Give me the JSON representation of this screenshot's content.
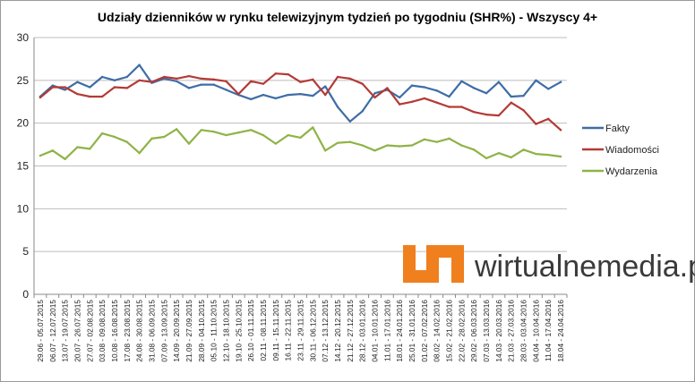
{
  "chart_data": {
    "type": "line",
    "title": "Udziały dzienników w rynku telewizyjnym tydzień po tygodniu (SHR%) - Wszyscy 4+",
    "xlabel": "",
    "ylabel": "",
    "ylim": [
      0,
      30
    ],
    "yticks": [
      "0",
      "5",
      "10",
      "15",
      "20",
      "25",
      "30"
    ],
    "grid": true,
    "legend_position": "right",
    "categories": [
      "29.06 - 05.07.2015",
      "06.07 - 12.07.2015",
      "13.07 - 19.07.2015",
      "20.07 - 26.07.2015",
      "27.07 - 02.08.2015",
      "03.08 - 09.08.2015",
      "10.08 - 16.08.2015",
      "17.08 - 23.08.2015",
      "24.08 - 30.08.2015",
      "31.08 - 06.09.2015",
      "07.09 - 13.09.2015",
      "14.09 - 20.09.2015",
      "21.09 - 27.09.2015",
      "28.09 - 04.10.2015",
      "05.10 - 11.10.2015",
      "12.10 - 18.10.2015",
      "19.10 - 25.10.2015",
      "26.10 - 01.11.2015",
      "02.11 - 08.11.2015",
      "09.11 - 15.11.2015",
      "16.11 - 22.11.2015",
      "23.11 - 29.11.2015",
      "30.11 - 06.12.2015",
      "07.12 - 13.12.2015",
      "14.12 - 20.12.2015",
      "21.12 - 27.12.2015",
      "28.12 - 03.01.2016",
      "04.01 - 10.01.2016",
      "11.01 - 17.01.2016",
      "18.01 - 24.01.2016",
      "25.01 - 31.01.2016",
      "01.02 - 07.02.2016",
      "08.02 - 14.02.2016",
      "15.02 - 21.02.2016",
      "22.02 - 28.02.2016",
      "29.02 - 06.03.2016",
      "07.03 - 13.03.2016",
      "14.03 - 20.03.2016",
      "21.03 - 27.03.2016",
      "28.03 - 03.04.2016",
      "04.04 - 10.04.2016",
      "11.04 - 17.04.2016",
      "18.04 - 24.04.2016"
    ],
    "series": [
      {
        "name": "Fakty",
        "color": "#3E6DA6",
        "values": [
          23.1,
          24.4,
          23.9,
          24.8,
          24.2,
          25.4,
          25.0,
          25.4,
          26.8,
          24.7,
          25.2,
          24.9,
          24.1,
          24.5,
          24.5,
          23.9,
          23.3,
          22.8,
          23.3,
          22.9,
          23.3,
          23.4,
          23.2,
          24.3,
          21.9,
          20.2,
          21.4,
          23.5,
          23.9,
          23.0,
          24.4,
          24.2,
          23.8,
          23.1,
          24.9,
          24.1,
          23.5,
          24.8,
          23.1,
          23.2,
          25.0,
          24.0,
          24.8
        ]
      },
      {
        "name": "Wiadomości",
        "color": "#B33A36",
        "values": [
          23.0,
          24.2,
          24.2,
          23.4,
          23.1,
          23.1,
          24.2,
          24.1,
          25.0,
          24.8,
          25.4,
          25.2,
          25.5,
          25.2,
          25.1,
          24.9,
          23.4,
          24.9,
          24.6,
          25.8,
          25.7,
          24.8,
          25.1,
          23.3,
          25.4,
          25.2,
          24.6,
          23.0,
          24.1,
          22.2,
          22.5,
          22.9,
          22.4,
          21.9,
          21.9,
          21.3,
          21.0,
          20.9,
          22.4,
          21.5,
          19.9,
          20.5,
          19.2
        ]
      },
      {
        "name": "Wydarzenia",
        "color": "#8FB346",
        "values": [
          16.2,
          16.8,
          15.8,
          17.2,
          17.0,
          18.8,
          18.4,
          17.8,
          16.5,
          18.2,
          18.4,
          19.3,
          17.6,
          19.2,
          19.0,
          18.6,
          18.9,
          19.2,
          18.6,
          17.6,
          18.6,
          18.3,
          19.5,
          16.8,
          17.7,
          17.8,
          17.4,
          16.8,
          17.4,
          17.3,
          17.4,
          18.1,
          17.8,
          18.2,
          17.4,
          16.9,
          15.9,
          16.5,
          16.0,
          16.9,
          16.4,
          16.3,
          16.1
        ]
      }
    ]
  },
  "watermark": {
    "text": "wirtualnemedia.pl",
    "logo_color": "#F07F1E"
  }
}
